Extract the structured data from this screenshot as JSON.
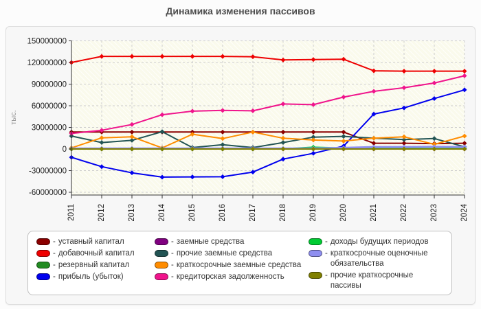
{
  "title": "Динамика изменения пассивов",
  "legend_dash": "-",
  "chart_data": {
    "type": "line",
    "x": [
      "2011",
      "2012",
      "2013",
      "2014",
      "2015",
      "2016",
      "2017",
      "2018",
      "2019",
      "2020",
      "2021",
      "2022",
      "2023",
      "2024"
    ],
    "ylabel": "тыс.",
    "ylim": [
      -60000000,
      150000000
    ],
    "ytick_step": 30000000,
    "ytick_labels": [
      "150000000",
      "120000000",
      "90000000",
      "60000000",
      "30000000",
      "0",
      "-30000000",
      "-60000000"
    ],
    "grid": true,
    "legend_position": "bottom",
    "marker": "diamond",
    "plot_bg": "#FAFAEC",
    "grid_color": "#CCCCCC",
    "axis_color": "#333333",
    "series": [
      {
        "id": "ustavnyy-kapital",
        "name": "уставный капитал",
        "color": "#8B0000",
        "values": [
          23500000,
          23500000,
          23500000,
          23500000,
          23500000,
          23500000,
          23500000,
          23500000,
          23500000,
          23500000,
          8000000,
          8000000,
          7500000,
          8000000
        ]
      },
      {
        "id": "dobavochnyy-kapital",
        "name": "добавочный капитал",
        "color": "#EE0000",
        "values": [
          120000000,
          128500000,
          128500000,
          128500000,
          128500000,
          128500000,
          128000000,
          123500000,
          124000000,
          124500000,
          108500000,
          108000000,
          108000000,
          108000000
        ]
      },
      {
        "id": "rezervnyy-kapital",
        "name": "резервный капитал",
        "color": "#228B22",
        "values": [
          400000,
          400000,
          400000,
          400000,
          400000,
          400000,
          400000,
          400000,
          400000,
          400000,
          400000,
          400000,
          400000,
          400000
        ]
      },
      {
        "id": "pribyl-ubytok",
        "name": "прибыль (убыток)",
        "color": "#0000EE",
        "values": [
          -11500000,
          -24500000,
          -33000000,
          -39000000,
          -38700000,
          -38500000,
          -32000000,
          -14000000,
          -6000000,
          4000000,
          48500000,
          57000000,
          70000000,
          82000000
        ]
      },
      {
        "id": "zaemnye-sredstva",
        "name": "заемные средства",
        "color": "#800080",
        "values": [
          0,
          0,
          0,
          0,
          0,
          0,
          0,
          0,
          0,
          0,
          0,
          0,
          0,
          0
        ]
      },
      {
        "id": "prochie-zaemnye-sredstva",
        "name": "прочие заемные средства",
        "color": "#225454",
        "values": [
          18000000,
          9000000,
          12000000,
          24000000,
          2000000,
          6000000,
          2000000,
          9000000,
          16500000,
          17500000,
          15000000,
          13000000,
          14500000,
          3000000
        ]
      },
      {
        "id": "kratkosrochnye-zaemnye-sredstva",
        "name": "краткосрочные заемные средства",
        "color": "#FF8C00",
        "values": [
          1500000,
          15500000,
          17000000,
          1500000,
          20500000,
          14500000,
          23500000,
          15000000,
          12500000,
          11000000,
          15000000,
          17000000,
          6500000,
          18000000
        ]
      },
      {
        "id": "kreditorskaya-zadolzhennost",
        "name": "кредиторская задолженность",
        "color": "#F0148C",
        "values": [
          21500000,
          26000000,
          34000000,
          47500000,
          52500000,
          53500000,
          53000000,
          62500000,
          61500000,
          72000000,
          80000000,
          85000000,
          91500000,
          101500000
        ]
      },
      {
        "id": "dokhody-budushchikh-periodov",
        "name": "доходы будущих периодов",
        "color": "#00CC33",
        "values": [
          0,
          0,
          0,
          0,
          0,
          0,
          0,
          300000,
          2500000,
          1300000,
          500000,
          500000,
          500000,
          500000
        ]
      },
      {
        "id": "kratkosrochnye-otsenochnye-obyazatelstva",
        "name": "краткосрочные оценочные обязательства",
        "color": "#8F8FF0",
        "values": [
          800000,
          800000,
          800000,
          800000,
          800000,
          800000,
          800000,
          800000,
          800000,
          1500000,
          2800000,
          2800000,
          3000000,
          2800000
        ]
      },
      {
        "id": "prochie-kratkosrochnye-passivy",
        "name": "прочие краткосрочные пассивы",
        "color": "#808000",
        "values": [
          0,
          0,
          0,
          0,
          0,
          0,
          0,
          0,
          0,
          0,
          0,
          0,
          0,
          0
        ]
      }
    ],
    "legend_columns": [
      [
        0,
        1,
        2,
        3
      ],
      [
        4,
        5,
        6,
        7
      ],
      [
        8,
        9,
        10
      ]
    ]
  }
}
